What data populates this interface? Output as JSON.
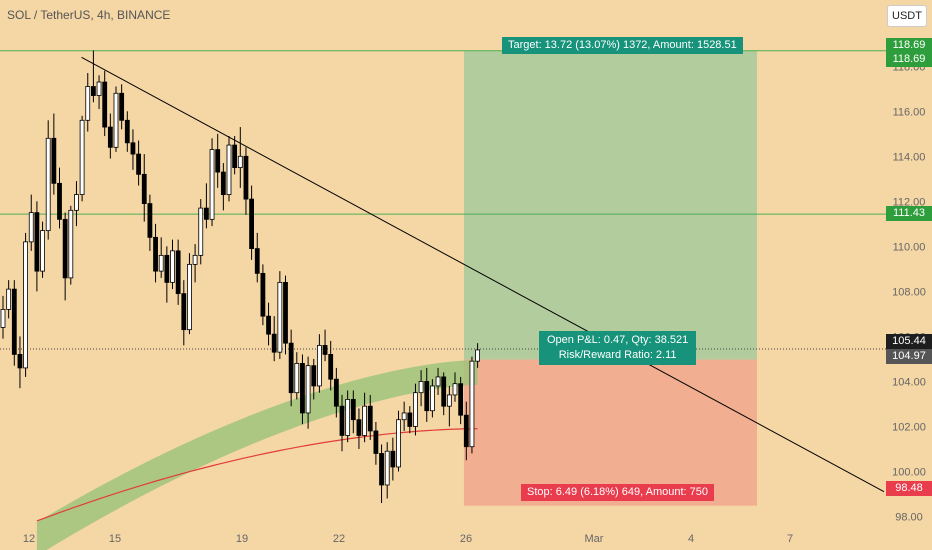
{
  "header": {
    "symbol_line": "SOL / TetherUS, 4h, BINANCE",
    "unit": "USDT"
  },
  "colors": {
    "background": "#f5d6a5",
    "up": "#ffffff",
    "down": "#000000",
    "target_zone": "#b3cc9e",
    "stop_zone": "#f1ae90",
    "target_label": "#16937a",
    "stop_label": "#e93d4e",
    "green_level": "#4caf50",
    "ema_band": "#9fc47a",
    "red_line": "#e33c3c"
  },
  "price_tags": [
    {
      "value": "118.69",
      "kind": "green"
    },
    {
      "value": "118.69",
      "kind": "green"
    },
    {
      "value": "111.43",
      "kind": "green"
    },
    {
      "value": "105.44",
      "kind": "dark"
    },
    {
      "value": "104.97",
      "kind": "gray"
    },
    {
      "value": "98.48",
      "kind": "red"
    }
  ],
  "position": {
    "target_label": "Target: 13.72 (13.07%) 1372, Amount: 1528.51",
    "stop_label": "Stop: 6.49 (6.18%) 649, Amount: 750",
    "pnl_label": "Open P&L: 0.47, Qty: 38.521",
    "rr_label": "Risk/Reward Ratio: 2.11"
  },
  "chart_data": {
    "type": "candlestick",
    "y_ticks": [
      "98.00",
      "100.00",
      "102.00",
      "104.00",
      "106.00",
      "108.00",
      "110.00",
      "112.00",
      "114.00",
      "116.00",
      "118.00"
    ],
    "x_ticks": [
      "12",
      "15",
      "19",
      "22",
      "26",
      "Mar",
      "4",
      "7"
    ],
    "ylim": [
      97.4,
      120.5
    ],
    "levels": [
      118.69,
      111.43,
      105.44
    ],
    "entry": 104.97,
    "target": 118.69,
    "stop": 98.48,
    "trendline": [
      [
        13.9,
        118.4
      ],
      [
        36.0,
        99.1
      ]
    ],
    "candles": [
      [
        106.4,
        107.8,
        105.9,
        107.2
      ],
      [
        107.2,
        108.5,
        106.8,
        108.1
      ],
      [
        108.1,
        108.5,
        104.7,
        105.2
      ],
      [
        105.2,
        106.0,
        103.7,
        104.6
      ],
      [
        104.6,
        110.6,
        104.2,
        110.2
      ],
      [
        110.2,
        112.3,
        109.8,
        111.5
      ],
      [
        111.5,
        112.0,
        108.0,
        108.9
      ],
      [
        108.9,
        111.1,
        108.6,
        110.7
      ],
      [
        110.7,
        115.6,
        110.3,
        114.8
      ],
      [
        114.8,
        115.9,
        112.3,
        112.8
      ],
      [
        112.8,
        113.5,
        110.8,
        111.2
      ],
      [
        111.2,
        111.5,
        107.6,
        108.6
      ],
      [
        108.6,
        111.8,
        108.3,
        111.6
      ],
      [
        111.6,
        112.9,
        110.9,
        112.3
      ],
      [
        112.3,
        115.8,
        112.0,
        115.6
      ],
      [
        115.6,
        117.7,
        115.1,
        117.1
      ],
      [
        117.1,
        118.7,
        116.4,
        116.7
      ],
      [
        116.7,
        117.6,
        116.1,
        117.3
      ],
      [
        117.3,
        117.8,
        114.9,
        115.3
      ],
      [
        115.3,
        115.9,
        113.9,
        114.4
      ],
      [
        114.4,
        117.1,
        114.2,
        116.8
      ],
      [
        116.8,
        117.2,
        115.2,
        115.6
      ],
      [
        115.6,
        116.0,
        114.2,
        114.6
      ],
      [
        114.6,
        115.2,
        113.4,
        114.1
      ],
      [
        114.1,
        114.7,
        112.7,
        113.2
      ],
      [
        113.2,
        114.1,
        111.1,
        111.9
      ],
      [
        111.9,
        112.3,
        109.8,
        110.4
      ],
      [
        110.4,
        111.0,
        108.4,
        108.9
      ],
      [
        108.9,
        110.4,
        108.6,
        109.6
      ],
      [
        109.6,
        110.0,
        107.5,
        108.4
      ],
      [
        108.4,
        110.3,
        108.1,
        109.8
      ],
      [
        109.8,
        110.3,
        107.4,
        107.9
      ],
      [
        107.9,
        108.5,
        105.6,
        106.3
      ],
      [
        106.3,
        109.7,
        106.1,
        109.2
      ],
      [
        109.2,
        110.1,
        108.4,
        109.6
      ],
      [
        109.6,
        112.1,
        109.2,
        111.7
      ],
      [
        111.7,
        112.8,
        110.8,
        111.2
      ],
      [
        111.2,
        114.8,
        110.9,
        114.3
      ],
      [
        114.3,
        115.0,
        112.6,
        113.3
      ],
      [
        113.3,
        113.7,
        111.6,
        112.3
      ],
      [
        112.3,
        114.9,
        112.0,
        114.5
      ],
      [
        114.5,
        114.9,
        113.2,
        113.5
      ],
      [
        113.5,
        115.3,
        112.6,
        114.0
      ],
      [
        114.0,
        114.4,
        111.4,
        112.1
      ],
      [
        112.1,
        112.7,
        109.4,
        109.9
      ],
      [
        109.9,
        110.6,
        108.4,
        108.8
      ],
      [
        108.8,
        109.2,
        106.5,
        106.9
      ],
      [
        106.9,
        107.5,
        105.6,
        106.1
      ],
      [
        106.1,
        106.9,
        104.9,
        105.3
      ],
      [
        105.3,
        108.9,
        105.0,
        108.4
      ],
      [
        108.4,
        108.7,
        105.2,
        105.7
      ],
      [
        105.7,
        106.3,
        102.9,
        103.5
      ],
      [
        103.5,
        105.3,
        103.2,
        104.8
      ],
      [
        104.8,
        105.2,
        102.1,
        102.6
      ],
      [
        102.6,
        105.1,
        101.9,
        104.7
      ],
      [
        104.7,
        105.0,
        103.2,
        103.8
      ],
      [
        103.8,
        106.1,
        103.5,
        105.6
      ],
      [
        105.6,
        106.3,
        104.9,
        105.2
      ],
      [
        105.2,
        105.8,
        103.6,
        104.1
      ],
      [
        104.1,
        104.6,
        102.4,
        102.9
      ],
      [
        102.9,
        103.4,
        100.9,
        101.6
      ],
      [
        101.6,
        103.6,
        101.3,
        103.2
      ],
      [
        103.2,
        103.6,
        101.7,
        102.3
      ],
      [
        102.3,
        102.8,
        101.0,
        101.6
      ],
      [
        101.6,
        103.5,
        101.3,
        102.9
      ],
      [
        102.9,
        103.4,
        101.4,
        101.8
      ],
      [
        101.8,
        102.2,
        100.3,
        100.8
      ],
      [
        100.8,
        101.2,
        98.6,
        99.4
      ],
      [
        99.4,
        101.3,
        98.8,
        100.9
      ],
      [
        100.9,
        101.5,
        99.6,
        100.2
      ],
      [
        100.2,
        102.7,
        100.0,
        102.3
      ],
      [
        102.3,
        103.1,
        101.8,
        102.6
      ],
      [
        102.6,
        102.9,
        101.7,
        102.0
      ],
      [
        102.0,
        103.9,
        101.6,
        103.5
      ],
      [
        103.5,
        104.5,
        102.9,
        104.0
      ],
      [
        104.0,
        104.6,
        102.2,
        102.7
      ],
      [
        102.7,
        104.1,
        102.4,
        103.8
      ],
      [
        103.8,
        104.6,
        103.4,
        104.2
      ],
      [
        104.2,
        104.4,
        102.5,
        102.9
      ],
      [
        102.9,
        103.8,
        102.0,
        103.4
      ],
      [
        103.4,
        104.4,
        103.1,
        103.9
      ],
      [
        103.9,
        104.2,
        102.1,
        102.5
      ],
      [
        102.5,
        103.1,
        100.5,
        101.1
      ],
      [
        101.1,
        105.1,
        100.8,
        104.9
      ],
      [
        104.9,
        105.7,
        104.6,
        105.4
      ]
    ]
  }
}
